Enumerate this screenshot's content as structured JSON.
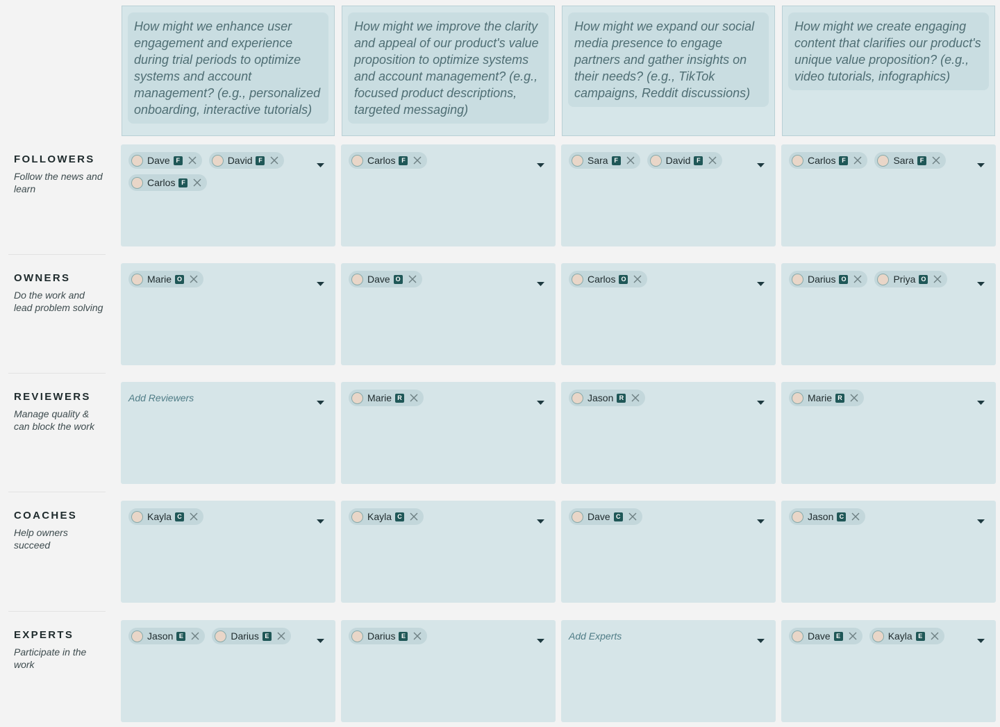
{
  "columns": [
    {
      "question": "How might we enhance user engagement and experience during trial periods to optimize systems and account management? (e.g., personalized onboarding, interactive tutorials)"
    },
    {
      "question": "How might we improve the clarity and appeal of our product's value proposition to optimize systems and account management? (e.g., focused product descriptions, targeted messaging)"
    },
    {
      "question": "How might we expand our social media presence to engage partners and gather insights on their needs? (e.g., TikTok campaigns, Reddit discussions)"
    },
    {
      "question": "How might we create engaging content that clarifies our product's unique value proposition? (e.g., video tutorials, infographics)"
    }
  ],
  "roles": [
    {
      "title": "FOLLOWERS",
      "description": "Follow the news and learn",
      "cells": [
        {
          "chips": [
            {
              "name": "Dave",
              "badge": "F"
            },
            {
              "name": "David",
              "badge": "F"
            },
            {
              "name": "Carlos",
              "badge": "F"
            }
          ]
        },
        {
          "chips": [
            {
              "name": "Carlos",
              "badge": "F"
            }
          ]
        },
        {
          "chips": [
            {
              "name": "Sara",
              "badge": "F"
            },
            {
              "name": "David",
              "badge": "F"
            }
          ]
        },
        {
          "chips": [
            {
              "name": "Carlos",
              "badge": "F"
            },
            {
              "name": "Sara",
              "badge": "F"
            }
          ]
        }
      ]
    },
    {
      "title": "OWNERS",
      "description": "Do the work and lead problem solving",
      "cells": [
        {
          "chips": [
            {
              "name": "Marie",
              "badge": "O"
            }
          ]
        },
        {
          "chips": [
            {
              "name": "Dave",
              "badge": "O"
            }
          ]
        },
        {
          "chips": [
            {
              "name": "Carlos",
              "badge": "O"
            }
          ]
        },
        {
          "chips": [
            {
              "name": "Darius",
              "badge": "O"
            },
            {
              "name": "Priya",
              "badge": "O"
            }
          ]
        }
      ]
    },
    {
      "title": "REVIEWERS",
      "description": "Manage quality & can block the work",
      "cells": [
        {
          "placeholder": "Add Reviewers"
        },
        {
          "chips": [
            {
              "name": "Marie",
              "badge": "R"
            }
          ]
        },
        {
          "chips": [
            {
              "name": "Jason",
              "badge": "R"
            }
          ]
        },
        {
          "chips": [
            {
              "name": "Marie",
              "badge": "R"
            }
          ]
        }
      ]
    },
    {
      "title": "COACHES",
      "description": "Help owners succeed",
      "cells": [
        {
          "chips": [
            {
              "name": "Kayla",
              "badge": "C"
            }
          ]
        },
        {
          "chips": [
            {
              "name": "Kayla",
              "badge": "C"
            }
          ]
        },
        {
          "chips": [
            {
              "name": "Dave",
              "badge": "C"
            }
          ]
        },
        {
          "chips": [
            {
              "name": "Jason",
              "badge": "C"
            }
          ]
        }
      ]
    },
    {
      "title": "EXPERTS",
      "description": "Participate in the work",
      "cells": [
        {
          "chips": [
            {
              "name": "Jason",
              "badge": "E"
            },
            {
              "name": "Darius",
              "badge": "E"
            }
          ]
        },
        {
          "chips": [
            {
              "name": "Darius",
              "badge": "E"
            }
          ]
        },
        {
          "placeholder": "Add Experts"
        },
        {
          "chips": [
            {
              "name": "Dave",
              "badge": "E"
            },
            {
              "name": "Kayla",
              "badge": "E"
            }
          ]
        }
      ]
    }
  ]
}
